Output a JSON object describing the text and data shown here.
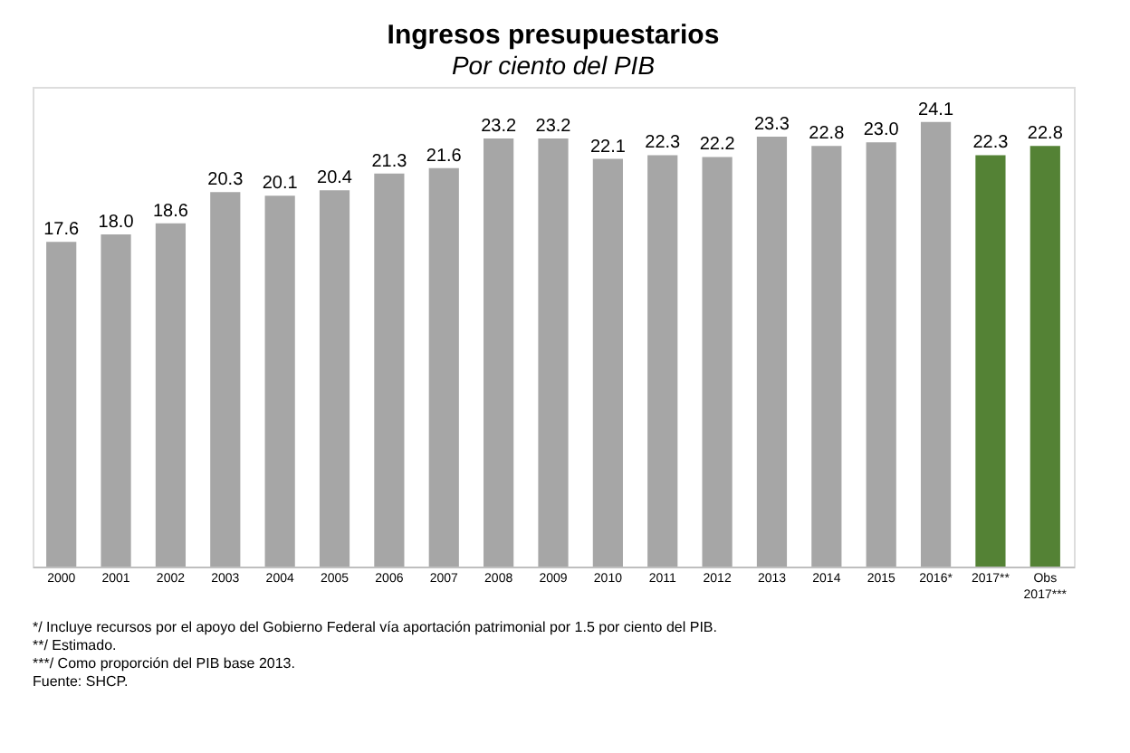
{
  "chart_data": {
    "type": "bar",
    "title": "Ingresos presupuestarios",
    "subtitle": "Por ciento del PIB",
    "categories": [
      "2000",
      "2001",
      "2002",
      "2003",
      "2004",
      "2005",
      "2006",
      "2007",
      "2008",
      "2009",
      "2010",
      "2011",
      "2012",
      "2013",
      "2014",
      "2015",
      "2016*",
      "2017**",
      "Obs\n2017***"
    ],
    "values": [
      17.6,
      18.0,
      18.6,
      20.3,
      20.1,
      20.4,
      21.3,
      21.6,
      23.2,
      23.2,
      22.1,
      22.3,
      22.2,
      23.3,
      22.8,
      23.0,
      24.1,
      22.3,
      22.8
    ],
    "colors": [
      "#a6a6a6",
      "#a6a6a6",
      "#a6a6a6",
      "#a6a6a6",
      "#a6a6a6",
      "#a6a6a6",
      "#a6a6a6",
      "#a6a6a6",
      "#a6a6a6",
      "#a6a6a6",
      "#a6a6a6",
      "#a6a6a6",
      "#a6a6a6",
      "#a6a6a6",
      "#a6a6a6",
      "#a6a6a6",
      "#a6a6a6",
      "#548235",
      "#548235"
    ],
    "value_labels": [
      "17.6",
      "18.0",
      "18.6",
      "20.3",
      "20.1",
      "20.4",
      "21.3",
      "21.6",
      "23.2",
      "23.2",
      "22.1",
      "22.3",
      "22.2",
      "23.3",
      "22.8",
      "23.0",
      "24.1",
      "22.3",
      "22.8"
    ],
    "grid": false,
    "annotations": [
      "*/ Incluye recursos por el apoyo del Gobierno Federal vía aportación patrimonial por 1.5 por ciento del PIB.",
      "**/ Estimado.",
      "***/ Como proporción del PIB base 2013.",
      "Fuente: SHCP."
    ]
  }
}
